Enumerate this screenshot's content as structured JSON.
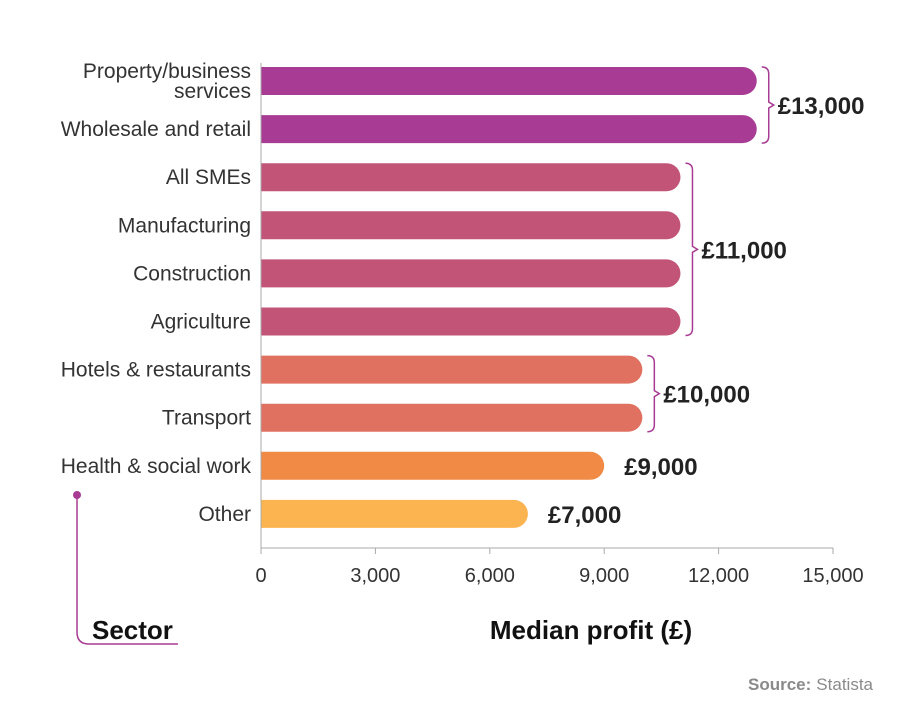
{
  "chart_data": {
    "type": "bar",
    "orientation": "horizontal",
    "categories": [
      "Property/business services",
      "Wholesale and retail",
      "All SMEs",
      "Manufacturing",
      "Construction",
      "Agriculture",
      "Hotels & restaurants",
      "Transport",
      "Health & social work",
      "Other"
    ],
    "category_lines": [
      [
        "Property/business",
        "services"
      ],
      [
        "Wholesale and retail"
      ],
      [
        "All SMEs"
      ],
      [
        "Manufacturing"
      ],
      [
        "Construction"
      ],
      [
        "Agriculture"
      ],
      [
        "Hotels & restaurants"
      ],
      [
        "Transport"
      ],
      [
        "Health & social work"
      ],
      [
        "Other"
      ]
    ],
    "values": [
      13000,
      13000,
      11000,
      11000,
      11000,
      11000,
      10000,
      10000,
      9000,
      7000
    ],
    "bar_colors": [
      "#a83b94",
      "#a83b94",
      "#c25478",
      "#c25478",
      "#c25478",
      "#c25478",
      "#e07060",
      "#e07060",
      "#f08a45",
      "#fbb450"
    ],
    "value_groups": [
      {
        "label": "£13,000",
        "first": 0,
        "last": 1
      },
      {
        "label": "£11,000",
        "first": 2,
        "last": 5
      },
      {
        "label": "£10,000",
        "first": 6,
        "last": 7
      },
      {
        "label": "£9,000",
        "first": 8,
        "last": 8
      },
      {
        "label": "£7,000",
        "first": 9,
        "last": 9
      }
    ],
    "xlim": [
      0,
      15000
    ],
    "xticks": [
      0,
      3000,
      6000,
      9000,
      12000,
      15000
    ],
    "xtick_labels": [
      "0",
      "3,000",
      "6,000",
      "9,000",
      "12,000",
      "15,000"
    ],
    "xlabel": "Median profit (£)",
    "ylabel": "Sector",
    "grid": false,
    "legend": "none",
    "colors": {
      "bracket": "#a83b94",
      "axis": "#aaaaaa",
      "sector_line": "#a83b94"
    }
  },
  "source": {
    "label": "Source:",
    "text": "Statista"
  }
}
